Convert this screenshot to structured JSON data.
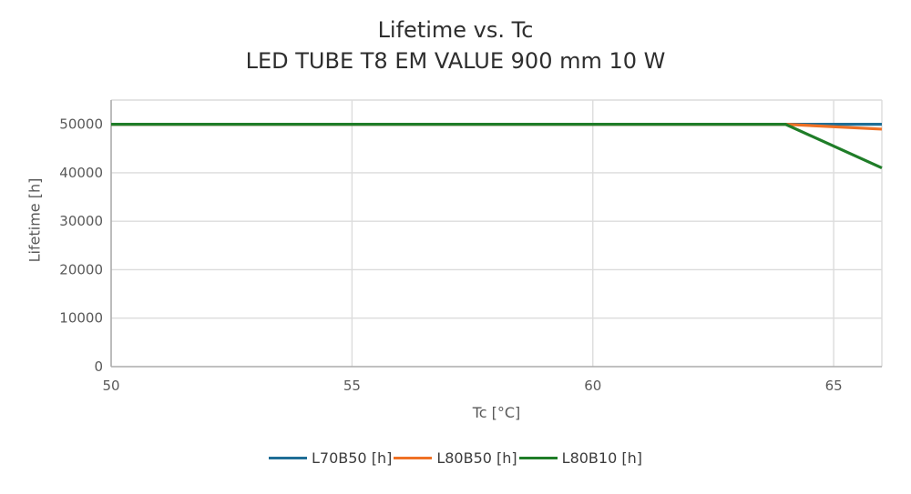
{
  "chart_data": {
    "type": "line",
    "title": "Lifetime vs. Tc",
    "subtitle": "LED TUBE T8 EM VALUE 900 mm 10 W",
    "xlabel": "Tc [°C]",
    "ylabel": "Lifetime [h]",
    "xlim": [
      50,
      66
    ],
    "ylim": [
      0,
      55000
    ],
    "x_ticks": [
      50,
      55,
      60,
      65
    ],
    "y_ticks": [
      0,
      10000,
      20000,
      30000,
      40000,
      50000
    ],
    "grid": true,
    "legend_position": "bottom-center",
    "series": [
      {
        "name": "L70B50 [h]",
        "color": "#1f6e96",
        "x": [
          50,
          64,
          66
        ],
        "y": [
          50000,
          50000,
          50000
        ]
      },
      {
        "name": "L80B50 [h]",
        "color": "#ef7125",
        "x": [
          50,
          64,
          66
        ],
        "y": [
          50000,
          50000,
          49000
        ]
      },
      {
        "name": "L80B10 [h]",
        "color": "#1f7d28",
        "x": [
          50,
          64,
          66
        ],
        "y": [
          50000,
          50000,
          41000
        ]
      }
    ],
    "colors": {
      "grid": "#dcdcdc",
      "axis": "#ababab",
      "tick_label": "#595959",
      "title": "#2e2e2e",
      "background": "#ffffff"
    }
  }
}
